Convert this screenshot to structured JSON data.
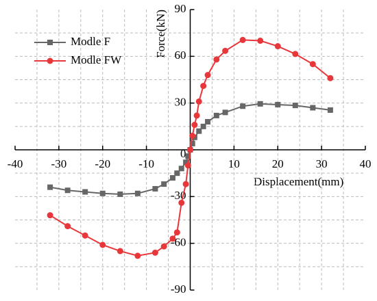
{
  "chart_data": {
    "type": "line",
    "x_label": "Displacement(mm)",
    "y_label": "Force(kN)",
    "xlim": [
      -40,
      40
    ],
    "ylim": [
      -90,
      90
    ],
    "xticks": [
      -40,
      -30,
      -20,
      -10,
      0,
      10,
      20,
      30,
      40
    ],
    "yticks": [
      -90,
      -60,
      -30,
      0,
      30,
      60,
      90
    ],
    "xgrid": [
      -35,
      -30,
      -25,
      -20,
      -15,
      -10,
      -5,
      5,
      10,
      15,
      20,
      25,
      30,
      35
    ],
    "ygrid": [
      -75,
      -60,
      -45,
      -30,
      -15,
      15,
      30,
      45,
      60,
      75
    ],
    "grid": true,
    "legend": "upper left",
    "series": [
      {
        "name": "Modle F",
        "color": "#666666",
        "marker": "square",
        "x": [
          -32,
          -28,
          -24,
          -20,
          -16,
          -12,
          -8,
          -6,
          -4,
          -3,
          -2,
          -1,
          -0.5,
          0,
          0.5,
          1,
          2,
          3,
          4,
          6,
          8,
          12,
          16,
          20,
          24,
          28,
          32
        ],
        "values": [
          -24,
          -26,
          -27,
          -28,
          -28.5,
          -28,
          -25,
          -22,
          -18,
          -15,
          -12,
          -8,
          -4,
          0,
          4,
          8,
          12,
          15,
          18,
          22,
          24,
          28,
          29.5,
          29,
          28.5,
          27,
          25.5
        ]
      },
      {
        "name": "Modle FW",
        "color": "#e8373a",
        "marker": "circle",
        "x": [
          -32,
          -28,
          -24,
          -20,
          -16,
          -12,
          -8,
          -6,
          -4,
          -3,
          -2,
          -1,
          -0.5,
          0,
          0.5,
          1,
          1.5,
          2,
          3,
          4,
          6,
          8,
          12,
          16,
          20,
          24,
          28,
          32
        ],
        "values": [
          -42,
          -49,
          -55,
          -61,
          -65,
          -68,
          -66,
          -62,
          -57,
          -53,
          -34,
          -22,
          -10,
          0,
          9,
          16,
          22,
          31,
          41,
          48,
          58,
          63.5,
          70.5,
          70,
          66.5,
          61.5,
          55,
          46
        ]
      }
    ]
  }
}
